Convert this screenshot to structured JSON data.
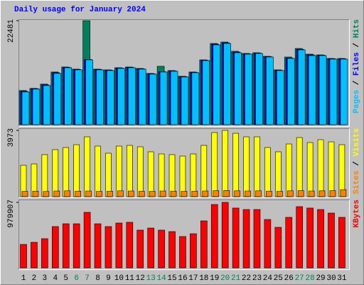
{
  "chart_data": [
    {
      "type": "bar",
      "title": "Daily usage for January 2024",
      "ylim": [
        0,
        22481
      ],
      "yticks": [
        22481
      ],
      "legend_separator": " / ",
      "series": [
        {
          "name": "Hits",
          "color": "#00805c",
          "values": [
            7392,
            7854,
            8778,
            11396,
            12474,
            12012,
            22481,
            12012,
            11858,
            12320,
            12474,
            12166,
            11088,
            12628,
            11704,
            10472,
            11396,
            14014,
            17556,
            17864,
            15862,
            15400,
            15554,
            14784,
            11858,
            14630,
            16478,
            15246,
            15092,
            14322,
            14322
          ]
        },
        {
          "name": "Files",
          "color": "#0000ff",
          "values": [
            7240,
            7780,
            8620,
            11240,
            12400,
            11930,
            14100,
            11930,
            11780,
            12240,
            12400,
            12090,
            11010,
            11470,
            11630,
            10400,
            11320,
            13940,
            17400,
            17700,
            15700,
            15320,
            15480,
            14700,
            11780,
            14400,
            16300,
            15100,
            15020,
            14250,
            14250
          ]
        },
        {
          "name": "Pages",
          "color": "#00c0ff",
          "values": [
            7084,
            7700,
            8470,
            11088,
            12320,
            11858,
            14014,
            11858,
            11704,
            12166,
            12320,
            12012,
            10934,
            11396,
            11550,
            10318,
            11242,
            13860,
            17248,
            17556,
            15554,
            15246,
            15400,
            14630,
            11704,
            14322,
            16170,
            14938,
            14938,
            14168,
            14168
          ]
        }
      ]
    },
    {
      "type": "bar",
      "ylim": [
        0,
        3973
      ],
      "yticks": [
        3973
      ],
      "legend_separator": " / ",
      "series": [
        {
          "name": "Visits",
          "color": "#ffff00",
          "values": [
            1879,
            1964,
            2520,
            2819,
            2947,
            3117,
            3587,
            3032,
            2605,
            3032,
            3074,
            2990,
            2691,
            2562,
            2520,
            2434,
            2562,
            3074,
            3843,
            3973,
            3800,
            3587,
            3587,
            2947,
            2691,
            3160,
            3544,
            3245,
            3416,
            3288,
            3117
          ]
        },
        {
          "name": "Sites",
          "color": "#ff8000",
          "values": [
            320,
            330,
            310,
            340,
            350,
            330,
            340,
            320,
            330,
            350,
            340,
            330,
            320,
            340,
            330,
            320,
            330,
            340,
            360,
            370,
            350,
            340,
            350,
            330,
            320,
            350,
            360,
            340,
            350,
            360,
            420
          ]
        }
      ]
    },
    {
      "type": "bar",
      "ylim": [
        0,
        979907
      ],
      "yticks": [
        979907
      ],
      "categories": [
        "1",
        "2",
        "3",
        "4",
        "5",
        "6",
        "7",
        "8",
        "9",
        "10",
        "11",
        "12",
        "13",
        "14",
        "15",
        "16",
        "17",
        "18",
        "19",
        "20",
        "21",
        "22",
        "23",
        "24",
        "25",
        "26",
        "27",
        "28",
        "29",
        "30",
        "31"
      ],
      "weekend_indexes": [
        5,
        6,
        12,
        13,
        19,
        20,
        26,
        27
      ],
      "weekend_color": "#00805c",
      "series": [
        {
          "name": "KBytes",
          "color": "#ff0000",
          "values": [
            351000,
            383000,
            437000,
            618000,
            660000,
            660000,
            831000,
            660000,
            618000,
            671000,
            682000,
            565000,
            596000,
            565000,
            543000,
            469000,
            511000,
            703000,
            948000,
            979907,
            895000,
            873000,
            873000,
            724000,
            607000,
            756000,
            916000,
            895000,
            873000,
            820000,
            756000
          ]
        }
      ]
    }
  ]
}
